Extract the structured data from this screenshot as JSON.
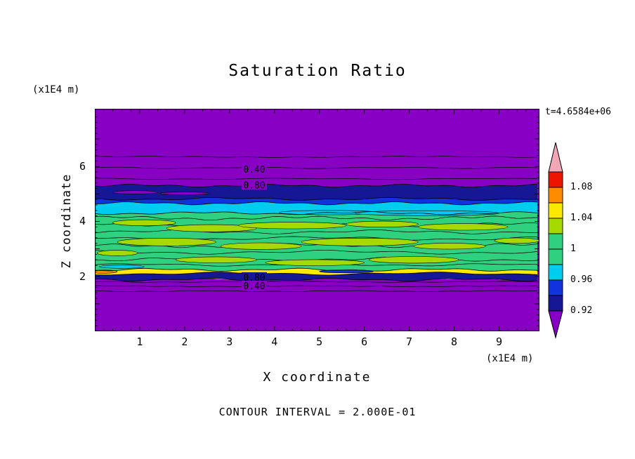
{
  "chart_data": {
    "type": "contour",
    "title": "Saturation Ratio",
    "timestamp_label": "t=4.6584e+06",
    "footer": "CONTOUR INTERVAL = 2.000E-01",
    "contour_interval": 0.2,
    "x_axis": {
      "label": "X coordinate",
      "unit": "(x1E4 m)",
      "ticks": [
        1,
        2,
        3,
        4,
        5,
        6,
        7,
        8,
        9
      ],
      "range": [
        0,
        9.9
      ],
      "minor_step": 0.2
    },
    "z_axis": {
      "label": "Z coordinate",
      "unit": "(x1E4 m)",
      "ticks": [
        2,
        4,
        6
      ],
      "range": [
        0,
        8.1
      ],
      "minor_step": 0.2
    },
    "colors": {
      "purple": "#8800C4",
      "navy": "#151795",
      "blue": "#1133DD",
      "cyan": "#00CCF0",
      "green": "#2FD07E",
      "ygreen": "#A6D900",
      "yellow": "#FFE800",
      "orange": "#FF8C00",
      "red": "#EE1500",
      "pink": "#F2A6B6",
      "line": "#000000"
    },
    "bands": [
      {
        "color": "navy",
        "z_top": 5.3,
        "z_bottom": 4.82
      },
      {
        "color": "blue",
        "z_top": 4.82,
        "z_bottom": 4.66
      },
      {
        "color": "cyan",
        "z_top": 4.66,
        "z_bottom": 4.3
      },
      {
        "color": "green",
        "z_top": 4.3,
        "z_bottom": 2.24
      },
      {
        "color": "yellow",
        "z_top": 2.24,
        "z_bottom": 2.1
      },
      {
        "color": "navy",
        "z_top": 2.1,
        "z_bottom": 1.88
      }
    ],
    "texture_lines": [
      {
        "z": 4.12,
        "amp": 3
      },
      {
        "z": 3.88,
        "amp": 3
      },
      {
        "z": 3.62,
        "amp": 3
      },
      {
        "z": 3.38,
        "amp": 3
      },
      {
        "z": 3.12,
        "amp": 3
      },
      {
        "z": 2.88,
        "amp": 3
      },
      {
        "z": 2.62,
        "amp": 3
      },
      {
        "z": 2.42,
        "amp": 2
      }
    ],
    "contour_lines": [
      {
        "z": 6.35,
        "amp": 1
      },
      {
        "z": 5.95,
        "amp": 1
      },
      {
        "z": 5.55,
        "amp": 1
      },
      {
        "z": 1.8,
        "amp": 0.8
      },
      {
        "z": 1.64,
        "amp": 0.8
      },
      {
        "z": 1.46,
        "amp": 0.8
      }
    ],
    "contour_labels": [
      {
        "text": "0.40",
        "x": 3.55,
        "z": 5.9,
        "bg": "purple"
      },
      {
        "text": "0.80",
        "x": 3.55,
        "z": 5.33,
        "bg": "purple"
      },
      {
        "text": "0.80",
        "x": 3.55,
        "z": 1.97,
        "bg": "navy"
      },
      {
        "text": "0.40",
        "x": 3.55,
        "z": 1.66,
        "bg": "purple"
      }
    ],
    "blobs": [
      {
        "x": 1.1,
        "z": 3.95,
        "rx": 0.7,
        "rz": 0.11,
        "color": "ygreen"
      },
      {
        "x": 2.6,
        "z": 3.75,
        "rx": 1.0,
        "rz": 0.13,
        "color": "ygreen"
      },
      {
        "x": 4.4,
        "z": 3.85,
        "rx": 1.2,
        "rz": 0.12,
        "color": "ygreen"
      },
      {
        "x": 6.4,
        "z": 3.9,
        "rx": 0.8,
        "rz": 0.11,
        "color": "ygreen"
      },
      {
        "x": 8.2,
        "z": 3.8,
        "rx": 1.0,
        "rz": 0.12,
        "color": "ygreen"
      },
      {
        "x": 1.6,
        "z": 3.25,
        "rx": 1.1,
        "rz": 0.14,
        "color": "ygreen"
      },
      {
        "x": 3.7,
        "z": 3.1,
        "rx": 0.9,
        "rz": 0.12,
        "color": "ygreen"
      },
      {
        "x": 5.9,
        "z": 3.25,
        "rx": 1.3,
        "rz": 0.14,
        "color": "ygreen"
      },
      {
        "x": 7.9,
        "z": 3.1,
        "rx": 0.8,
        "rz": 0.11,
        "color": "ygreen"
      },
      {
        "x": 9.4,
        "z": 3.3,
        "rx": 0.5,
        "rz": 0.1,
        "color": "ygreen"
      },
      {
        "x": 2.7,
        "z": 2.6,
        "rx": 0.9,
        "rz": 0.11,
        "color": "ygreen"
      },
      {
        "x": 4.9,
        "z": 2.5,
        "rx": 1.1,
        "rz": 0.11,
        "color": "ygreen"
      },
      {
        "x": 7.1,
        "z": 2.6,
        "rx": 1.0,
        "rz": 0.12,
        "color": "ygreen"
      },
      {
        "x": 0.5,
        "z": 2.85,
        "rx": 0.45,
        "rz": 0.1,
        "color": "ygreen"
      },
      {
        "x": 5.2,
        "z": 4.32,
        "rx": 1.1,
        "rz": 0.08,
        "color": "cyan"
      },
      {
        "x": 7.4,
        "z": 4.3,
        "rx": 1.6,
        "rz": 0.09,
        "color": "cyan"
      },
      {
        "x": 0.6,
        "z": 2.35,
        "rx": 0.5,
        "rz": 0.06,
        "color": "cyan"
      },
      {
        "x": 0.9,
        "z": 5.06,
        "rx": 0.5,
        "rz": 0.06,
        "color": "purple"
      },
      {
        "x": 2.0,
        "z": 5.02,
        "rx": 0.55,
        "rz": 0.05,
        "color": "purple"
      },
      {
        "x": 0.2,
        "z": 2.17,
        "rx": 0.3,
        "rz": 0.06,
        "color": "orange"
      },
      {
        "x": 5.6,
        "z": 2.18,
        "rx": 0.6,
        "rz": 0.05,
        "color": "blue"
      }
    ],
    "colorbar": {
      "labels": [
        "1.08",
        "1.04",
        "1",
        "0.96",
        "0.92"
      ],
      "label_boundaries": [
        1,
        3,
        5,
        7,
        9
      ],
      "segments": [
        "red",
        "orange",
        "yellow",
        "ygreen",
        "green",
        "green",
        "cyan",
        "blue",
        "navy"
      ],
      "top_color": "pink",
      "bottom_color": "purple"
    }
  }
}
